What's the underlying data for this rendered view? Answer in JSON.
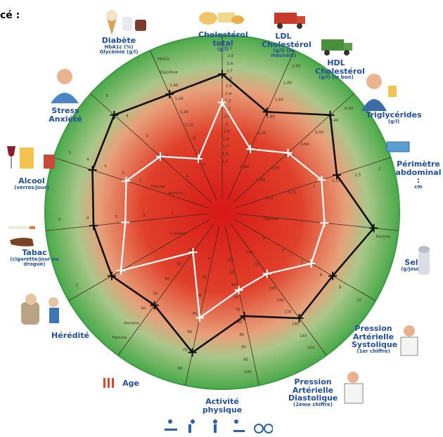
{
  "corner_text": "cé :",
  "factors": [
    {
      "key": "cholesterol-total",
      "title": "Cholestérol total",
      "unit": "(g/l)",
      "angle": 0,
      "ticks": [
        "1,5",
        "1,6",
        "1,7",
        "1,8",
        "1,9",
        "2",
        "2,1",
        "2,2",
        "2,3",
        "2,4",
        "2,5",
        "2,6",
        "2,7",
        "2,8",
        "2,9",
        "3"
      ]
    },
    {
      "key": "ldl",
      "title": "LDL Cholestérol",
      "unit": "(g/l) (le mauvais)",
      "angle": 24,
      "ticks": [
        "0,80",
        "1,00",
        "1,20",
        "1,40",
        "1,60",
        "1,80",
        "2,00"
      ]
    },
    {
      "key": "hdl",
      "title": "HDL Cholestérol",
      "unit": "(g/l) (le bon)",
      "angle": 48,
      "ticks": [
        "0,90",
        "0,80",
        "0,70",
        "0,60",
        "0,50",
        "0,40",
        "0,30"
      ]
    },
    {
      "key": "triglycerides",
      "title": "Triglycérides",
      "unit": "(g/l)",
      "angle": 72,
      "ticks": [
        "0,5",
        "0,75",
        "1",
        "1,25",
        "1,5",
        "2"
      ]
    },
    {
      "key": "perimetre",
      "title": "Périmètre abdominal :",
      "unit": "cm",
      "angle": 96,
      "ticks": [
        "Homme",
        "Femme"
      ]
    },
    {
      "key": "sel",
      "title": "Sel",
      "unit": "(g/jour)",
      "angle": 120,
      "ticks": [
        "5",
        "6",
        "7",
        "8",
        "9",
        "10"
      ]
    },
    {
      "key": "pas",
      "title": "Pression Artérielle Systolique",
      "unit": "(1er chiffre)",
      "angle": 144,
      "ticks": [
        "110",
        "115",
        "120",
        "125",
        "130",
        "135",
        "140",
        "145",
        "150"
      ]
    },
    {
      "key": "pad",
      "title": "Pression Artérielle Diastolique",
      "unit": "(2ème chiffre)",
      "angle": 168,
      "ticks": [
        "55",
        "60",
        "65",
        "70",
        "75",
        "80",
        "85",
        "90",
        "95",
        "100"
      ]
    },
    {
      "key": "activite",
      "title": "Activité physique",
      "unit": "",
      "angle": 192,
      "ticks": [
        "0",
        "15",
        "30",
        "45",
        "60",
        "75",
        "90"
      ]
    },
    {
      "key": "age",
      "title": "Age",
      "unit": "",
      "angle": 216,
      "ticks": [
        "20",
        "30",
        "40",
        "50",
        "60",
        "Homme",
        "Femme"
      ]
    },
    {
      "key": "heredite",
      "title": "Hérédité",
      "unit": "",
      "angle": 240,
      "ticks": [
        "1 parent",
        "2"
      ]
    },
    {
      "key": "tabac",
      "title": "Tabac",
      "unit": "(cigarette/jour ou drogue)",
      "angle": 264,
      "ticks": [
        "1",
        "2",
        "3",
        "4",
        "5"
      ]
    },
    {
      "key": "alcool",
      "title": "Alcool",
      "unit": "(verres/jour)",
      "angle": 288,
      "ticks": [
        "Homme",
        "Femme",
        "1",
        "2",
        "3",
        "4",
        "5"
      ]
    },
    {
      "key": "stress",
      "title": "Stress Anxiété",
      "unit": "",
      "angle": 312,
      "ticks": [
        "1",
        "2",
        "3",
        "4",
        "5"
      ]
    },
    {
      "key": "diabete",
      "title": "Diabète",
      "unit": "HbA1c (%) Glycémie (g/l)",
      "angle": 336,
      "ticks": [
        "6",
        "7",
        "8",
        "1,10",
        "1,20",
        "1,26",
        "1,40",
        "Glycémie",
        "HbA1c"
      ]
    }
  ],
  "profiles": [
    {
      "name": "black",
      "color": "#111111",
      "values": [
        0.78,
        0.62,
        0.82,
        0.68,
        0.86,
        0.72,
        0.74,
        0.6,
        0.81,
        0.65,
        0.72,
        0.73,
        0.77,
        0.82,
        0.73
      ]
    },
    {
      "name": "white",
      "color": "#ffffff",
      "values": [
        0.62,
        0.39,
        0.5,
        0.59,
        0.58,
        0.58,
        0.43,
        0.45,
        0.61,
        0.28,
        0.66,
        0.55,
        0.57,
        0.47,
        0.33
      ]
    }
  ],
  "colors": {
    "label_blue": "#1f4f9e",
    "ring_green": "#4cae4f",
    "center_red": "#d91a1a"
  },
  "icons": [
    "ice-cream-icon",
    "cheese-icon",
    "ldl-truck-icon",
    "hdl-truck-icon",
    "person-beer-icon",
    "scale-icon",
    "salt-shaker-icon",
    "doctor-icon",
    "doctor-icon-2",
    "runner-icons",
    "age-bars-icon",
    "grandparent-icon",
    "pipe-cigarette-icon",
    "wine-beer-icon",
    "man-stress-icon"
  ]
}
